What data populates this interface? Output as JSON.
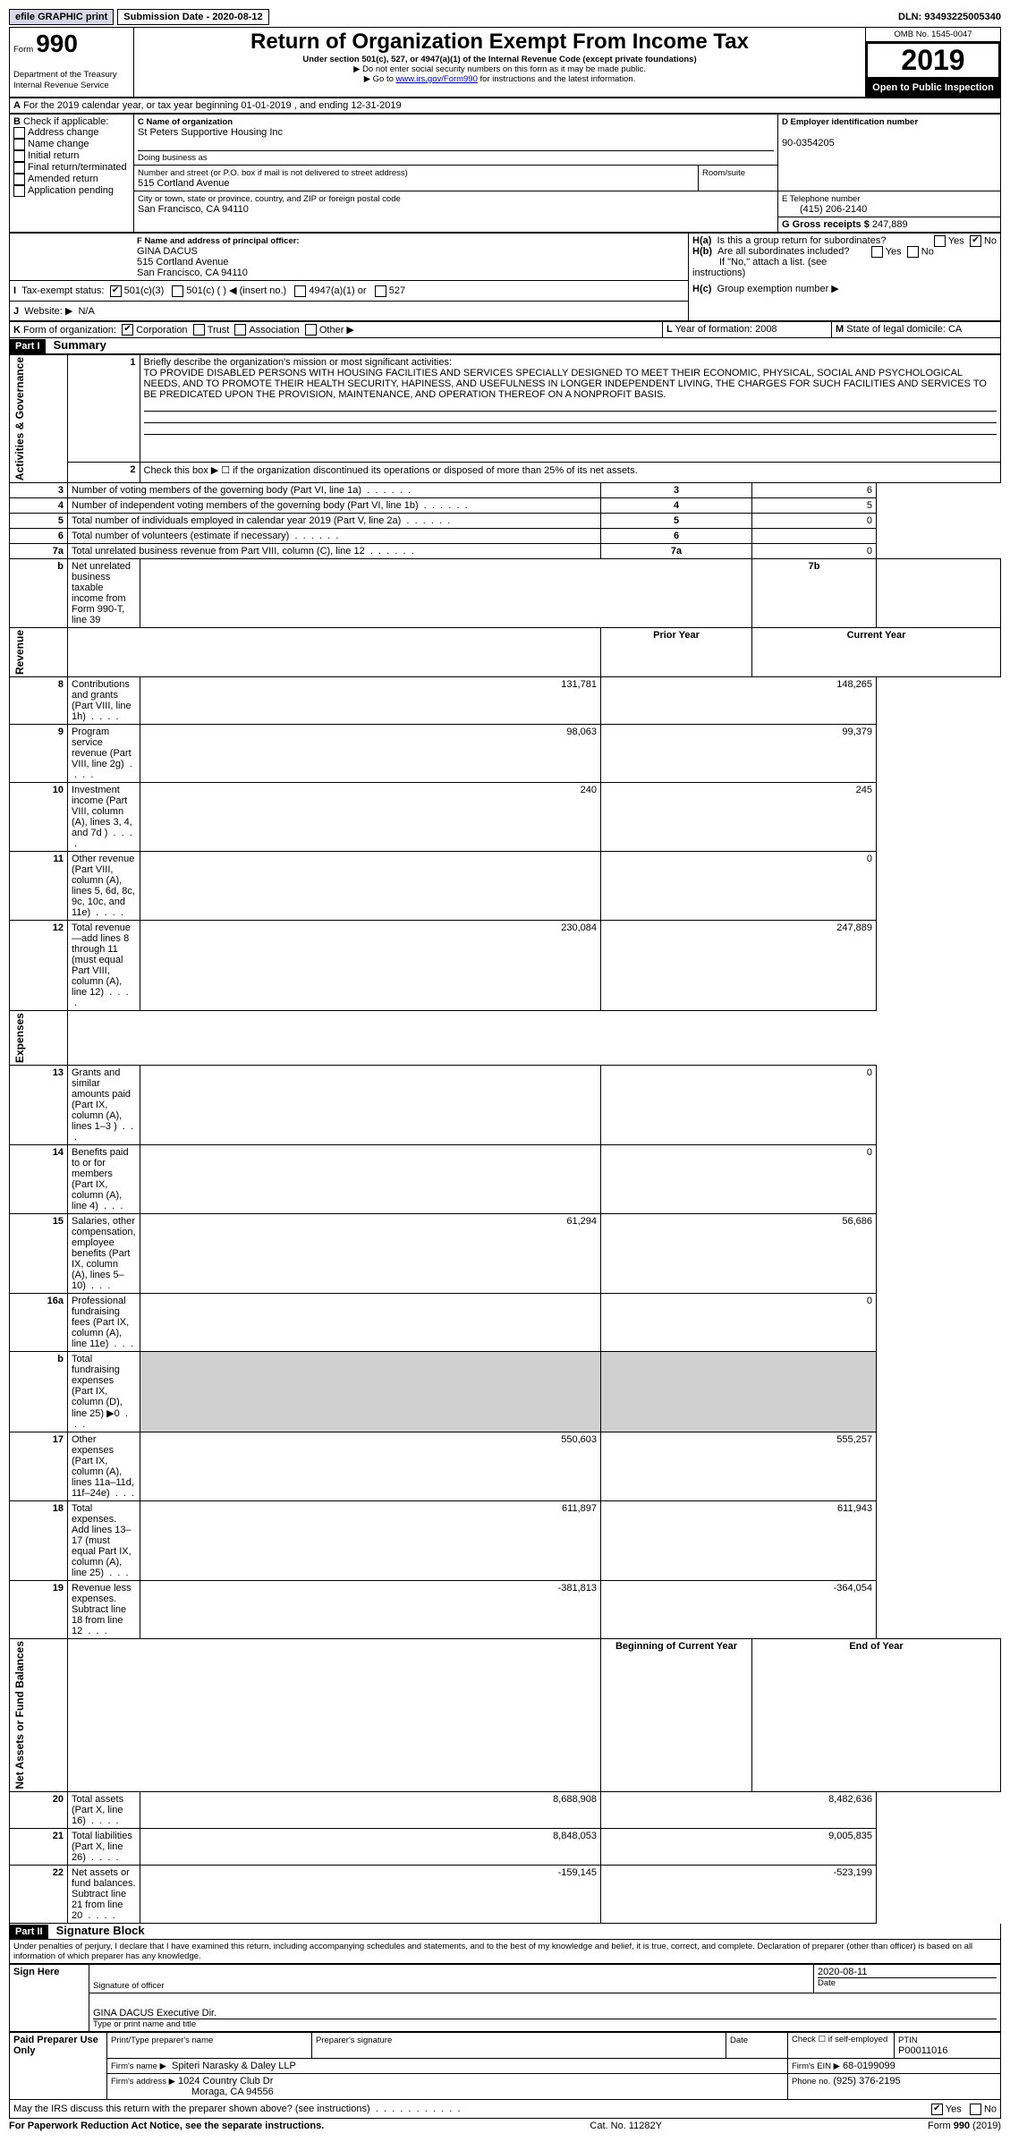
{
  "topbar": {
    "efile_label": "efile GRAPHIC print",
    "submission_label": "Submission Date - 2020-08-12",
    "dln_label": "DLN: 93493225005340"
  },
  "header": {
    "form_word": "Form",
    "form_number": "990",
    "title": "Return of Organization Exempt From Income Tax",
    "subtitle": "Under section 501(c), 527, or 4947(a)(1) of the Internal Revenue Code (except private foundations)",
    "warn1": "Do not enter social security numbers on this form as it may be made public.",
    "warn2_pre": "Go to ",
    "warn2_link": "www.irs.gov/Form990",
    "warn2_post": " for instructions and the latest information.",
    "dept": "Department of the Treasury\nInternal Revenue Service",
    "omb": "OMB No. 1545-0047",
    "year": "2019",
    "open": "Open to Public Inspection"
  },
  "A": {
    "line": "For the 2019 calendar year, or tax year beginning 01-01-2019   , and ending 12-31-2019"
  },
  "B": {
    "label": "Check if applicable:",
    "opts": [
      "Address change",
      "Name change",
      "Initial return",
      "Final return/terminated",
      "Amended return",
      "Application pending"
    ]
  },
  "C": {
    "name_label": "C Name of organization",
    "name": "St Peters Supportive Housing Inc",
    "dba_label": "Doing business as",
    "street_label": "Number and street (or P.O. box if mail is not delivered to street address)",
    "room_label": "Room/suite",
    "street": "515 Cortland Avenue",
    "city_label": "City or town, state or province, country, and ZIP or foreign postal code",
    "city": "San Francisco, CA  94110"
  },
  "D": {
    "label": "D Employer identification number",
    "value": "90-0354205"
  },
  "E": {
    "label": "E Telephone number",
    "value": "(415) 206-2140"
  },
  "G": {
    "label": "G Gross receipts $",
    "value": "247,889"
  },
  "F": {
    "label": "F  Name and address of principal officer:",
    "name": "GINA DACUS",
    "addr1": "515 Cortland Avenue",
    "addr2": "San Francisco, CA  94110"
  },
  "H": {
    "a": "Is this a group return for subordinates?",
    "b": "Are all subordinates included?",
    "note": "If \"No,\" attach a list. (see instructions)",
    "c": "Group exemption number ▶",
    "yes": "Yes",
    "no": "No"
  },
  "I": {
    "label": "Tax-exempt status:",
    "opts": [
      "501(c)(3)",
      "501(c) (   ) ◀ (insert no.)",
      "4947(a)(1) or",
      "527"
    ]
  },
  "J": {
    "label": "Website: ▶",
    "value": "N/A"
  },
  "K": {
    "label": "Form of organization:",
    "opts": [
      "Corporation",
      "Trust",
      "Association",
      "Other ▶"
    ]
  },
  "L": {
    "label": "Year of formation:",
    "value": "2008"
  },
  "M": {
    "label": "State of legal domicile:",
    "value": "CA"
  },
  "partI": {
    "header": "Part I",
    "title": "Summary",
    "line1_label": "Briefly describe the organization's mission or most significant activities:",
    "mission": "TO PROVIDE DISABLED PERSONS WITH HOUSING FACILITIES AND SERVICES SPECIALLY DESIGNED TO MEET THEIR ECONOMIC, PHYSICAL, SOCIAL AND PSYCHOLOGICAL NEEDS, AND TO PROMOTE THEIR HEALTH SECURITY, HAPINESS, AND USEFULNESS IN LONGER INDEPENDENT LIVING, THE CHARGES FOR SUCH FACILITIES AND SERVICES TO BE PREDICATED UPON THE PROVISION, MAINTENANCE, AND OPERATION THEREOF ON A NONPROFIT BASIS.",
    "line2": "Check this box ▶ ☐  if the organization discontinued its operations or disposed of more than 25% of its net assets.",
    "sections": {
      "gov": "Activities & Governance",
      "rev": "Revenue",
      "exp": "Expenses",
      "net": "Net Assets or Fund Balances"
    },
    "cols": {
      "prior": "Prior Year",
      "current": "Current Year",
      "beg": "Beginning of Current Year",
      "end": "End of Year"
    },
    "rows": [
      {
        "n": "3",
        "label": "Number of voting members of the governing body (Part VI, line 1a)",
        "box": "3",
        "val": "6"
      },
      {
        "n": "4",
        "label": "Number of independent voting members of the governing body (Part VI, line 1b)",
        "box": "4",
        "val": "5"
      },
      {
        "n": "5",
        "label": "Total number of individuals employed in calendar year 2019 (Part V, line 2a)",
        "box": "5",
        "val": "0"
      },
      {
        "n": "6",
        "label": "Total number of volunteers (estimate if necessary)",
        "box": "6",
        "val": ""
      },
      {
        "n": "7a",
        "label": "Total unrelated business revenue from Part VIII, column (C), line 12",
        "box": "7a",
        "val": "0"
      },
      {
        "n": "b",
        "label": "Net unrelated business taxable income from Form 990-T, line 39",
        "box": "7b",
        "val": ""
      }
    ],
    "rev_rows": [
      {
        "n": "8",
        "label": "Contributions and grants (Part VIII, line 1h)",
        "prior": "131,781",
        "cur": "148,265"
      },
      {
        "n": "9",
        "label": "Program service revenue (Part VIII, line 2g)",
        "prior": "98,063",
        "cur": "99,379"
      },
      {
        "n": "10",
        "label": "Investment income (Part VIII, column (A), lines 3, 4, and 7d )",
        "prior": "240",
        "cur": "245"
      },
      {
        "n": "11",
        "label": "Other revenue (Part VIII, column (A), lines 5, 6d, 8c, 9c, 10c, and 11e)",
        "prior": "",
        "cur": "0"
      },
      {
        "n": "12",
        "label": "Total revenue—add lines 8 through 11 (must equal Part VIII, column (A), line 12)",
        "prior": "230,084",
        "cur": "247,889"
      }
    ],
    "exp_rows": [
      {
        "n": "13",
        "label": "Grants and similar amounts paid (Part IX, column (A), lines 1–3 )",
        "prior": "",
        "cur": "0"
      },
      {
        "n": "14",
        "label": "Benefits paid to or for members (Part IX, column (A), line 4)",
        "prior": "",
        "cur": "0"
      },
      {
        "n": "15",
        "label": "Salaries, other compensation, employee benefits (Part IX, column (A), lines 5–10)",
        "prior": "61,294",
        "cur": "56,686"
      },
      {
        "n": "16a",
        "label": "Professional fundraising fees (Part IX, column (A), line 11e)",
        "prior": "",
        "cur": "0"
      },
      {
        "n": "b",
        "label": "Total fundraising expenses (Part IX, column (D), line 25) ▶0",
        "prior": "grey",
        "cur": "grey"
      },
      {
        "n": "17",
        "label": "Other expenses (Part IX, column (A), lines 11a–11d, 11f–24e)",
        "prior": "550,603",
        "cur": "555,257"
      },
      {
        "n": "18",
        "label": "Total expenses. Add lines 13–17 (must equal Part IX, column (A), line 25)",
        "prior": "611,897",
        "cur": "611,943"
      },
      {
        "n": "19",
        "label": "Revenue less expenses. Subtract line 18 from line 12",
        "prior": "-381,813",
        "cur": "-364,054"
      }
    ],
    "net_rows": [
      {
        "n": "20",
        "label": "Total assets (Part X, line 16)",
        "prior": "8,688,908",
        "cur": "8,482,636"
      },
      {
        "n": "21",
        "label": "Total liabilities (Part X, line 26)",
        "prior": "8,848,053",
        "cur": "9,005,835"
      },
      {
        "n": "22",
        "label": "Net assets or fund balances. Subtract line 21 from line 20",
        "prior": "-159,145",
        "cur": "-523,199"
      }
    ]
  },
  "partII": {
    "header": "Part II",
    "title": "Signature Block",
    "decl": "Under penalties of perjury, I declare that I have examined this return, including accompanying schedules and statements, and to the best of my knowledge and belief, it is true, correct, and complete. Declaration of preparer (other than officer) is based on all information of which preparer has any knowledge.",
    "sign_here": "Sign Here",
    "sig_officer": "Signature of officer",
    "sig_date": "2020-08-11",
    "date_label": "Date",
    "officer_name": "GINA DACUS  Executive Dir.",
    "officer_title_label": "Type or print name and title",
    "paid": "Paid Preparer Use Only",
    "prep_name_label": "Print/Type preparer's name",
    "prep_sig_label": "Preparer's signature",
    "check_self": "Check ☐ if self-employed",
    "ptin_label": "PTIN",
    "ptin": "P00011016",
    "firm_name_label": "Firm's name    ▶",
    "firm_name": "Spiteri Narasky & Daley LLP",
    "firm_ein_label": "Firm's EIN ▶",
    "firm_ein": "68-0199099",
    "firm_addr_label": "Firm's address ▶",
    "firm_addr1": "1024 Country Club Dr",
    "firm_addr2": "Moraga, CA  94556",
    "phone_label": "Phone no.",
    "phone": "(925) 376-2195",
    "discuss": "May the IRS discuss this return with the preparer shown above? (see instructions)",
    "yes": "Yes",
    "no": "No"
  },
  "footer": {
    "left": "For Paperwork Reduction Act Notice, see the separate instructions.",
    "mid": "Cat. No. 11282Y",
    "right_pre": "Form ",
    "right_form": "990",
    "right_post": " (2019)"
  },
  "colors": {
    "black": "#000000",
    "grey": "#d0d0d0",
    "link": "#0000cc"
  }
}
